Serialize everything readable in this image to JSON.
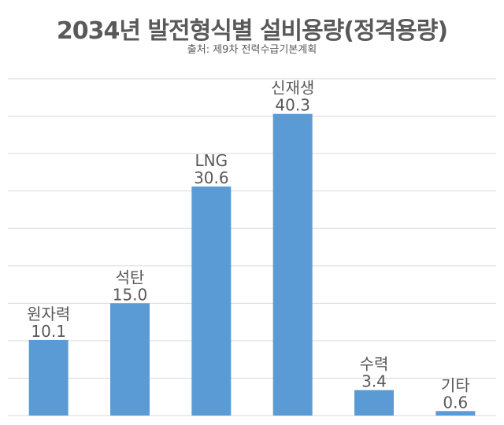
{
  "chart_data": {
    "type": "bar",
    "title": "2034년 발전형식별 설비용량(정격용량)",
    "subtitle": "출처: 제9차 전력수급기본계획",
    "categories": [
      "원자력",
      "석탄",
      "LNG",
      "신재생",
      "수력",
      "기타"
    ],
    "values": [
      10.1,
      15.0,
      30.6,
      40.3,
      3.4,
      0.6
    ],
    "value_labels": [
      "10.1",
      "15.0",
      "30.6",
      "40.3",
      "3.4",
      "0.6"
    ],
    "ylim": [
      0,
      45
    ],
    "grid": true,
    "legend": "none",
    "colors": {
      "bar": "#5B9BD5",
      "grid": "#D9D9D9",
      "text": "#595959"
    }
  }
}
